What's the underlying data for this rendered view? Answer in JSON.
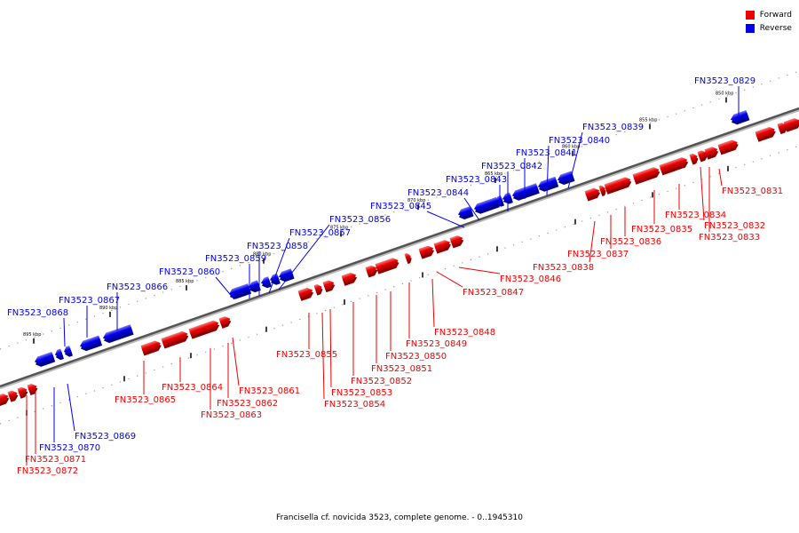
{
  "legend": {
    "forward": {
      "label": "Forward",
      "color": "#ee0000"
    },
    "reverse": {
      "label": "Reverse",
      "color": "#0000ee"
    }
  },
  "caption": "Francisella cf. novicida 3523, complete genome. - 0..1945310",
  "scale_ticks": [
    "850 kbp",
    "855 kbp",
    "860 kbp",
    "865 kbp",
    "870 kbp",
    "875 kbp",
    "880 kbp",
    "885 kbp",
    "890 kbp",
    "895 kbp"
  ],
  "genes": [
    {
      "id": "FN3523_0829",
      "strand": "reverse"
    },
    {
      "id": "FN3523_0831",
      "strand": "forward"
    },
    {
      "id": "FN3523_0832",
      "strand": "forward"
    },
    {
      "id": "FN3523_0833",
      "strand": "forward"
    },
    {
      "id": "FN3523_0834",
      "strand": "forward"
    },
    {
      "id": "FN3523_0835",
      "strand": "forward"
    },
    {
      "id": "FN3523_0836",
      "strand": "forward"
    },
    {
      "id": "FN3523_0837",
      "strand": "forward"
    },
    {
      "id": "FN3523_0838",
      "strand": "forward"
    },
    {
      "id": "FN3523_0839",
      "strand": "reverse"
    },
    {
      "id": "FN3523_0840",
      "strand": "reverse"
    },
    {
      "id": "FN3523_0841",
      "strand": "reverse"
    },
    {
      "id": "FN3523_0842",
      "strand": "reverse"
    },
    {
      "id": "FN3523_0843",
      "strand": "reverse"
    },
    {
      "id": "FN3523_0844",
      "strand": "reverse"
    },
    {
      "id": "FN3523_0845",
      "strand": "reverse"
    },
    {
      "id": "FN3523_0846",
      "strand": "forward"
    },
    {
      "id": "FN3523_0847",
      "strand": "forward"
    },
    {
      "id": "FN3523_0848",
      "strand": "forward"
    },
    {
      "id": "FN3523_0849",
      "strand": "forward"
    },
    {
      "id": "FN3523_0850",
      "strand": "forward"
    },
    {
      "id": "FN3523_0851",
      "strand": "forward"
    },
    {
      "id": "FN3523_0852",
      "strand": "forward"
    },
    {
      "id": "FN3523_0853",
      "strand": "forward"
    },
    {
      "id": "FN3523_0854",
      "strand": "forward"
    },
    {
      "id": "FN3523_0855",
      "strand": "forward"
    },
    {
      "id": "FN3523_0856",
      "strand": "reverse"
    },
    {
      "id": "FN3523_0857",
      "strand": "reverse"
    },
    {
      "id": "FN3523_0858",
      "strand": "reverse"
    },
    {
      "id": "FN3523_0859",
      "strand": "reverse"
    },
    {
      "id": "FN3523_0860",
      "strand": "reverse"
    },
    {
      "id": "FN3523_0861",
      "strand": "forward"
    },
    {
      "id": "FN3523_0862",
      "strand": "forward"
    },
    {
      "id": "FN3523_0863",
      "strand": "forward"
    },
    {
      "id": "FN3523_0864",
      "strand": "forward"
    },
    {
      "id": "FN3523_0865",
      "strand": "forward"
    },
    {
      "id": "FN3523_0866",
      "strand": "reverse"
    },
    {
      "id": "FN3523_0867",
      "strand": "reverse"
    },
    {
      "id": "FN3523_0868",
      "strand": "reverse"
    },
    {
      "id": "FN3523_0869",
      "strand": "reverse"
    },
    {
      "id": "FN3523_0870",
      "strand": "reverse"
    },
    {
      "id": "FN3523_0871",
      "strand": "forward"
    },
    {
      "id": "FN3523_0872",
      "strand": "forward"
    }
  ]
}
